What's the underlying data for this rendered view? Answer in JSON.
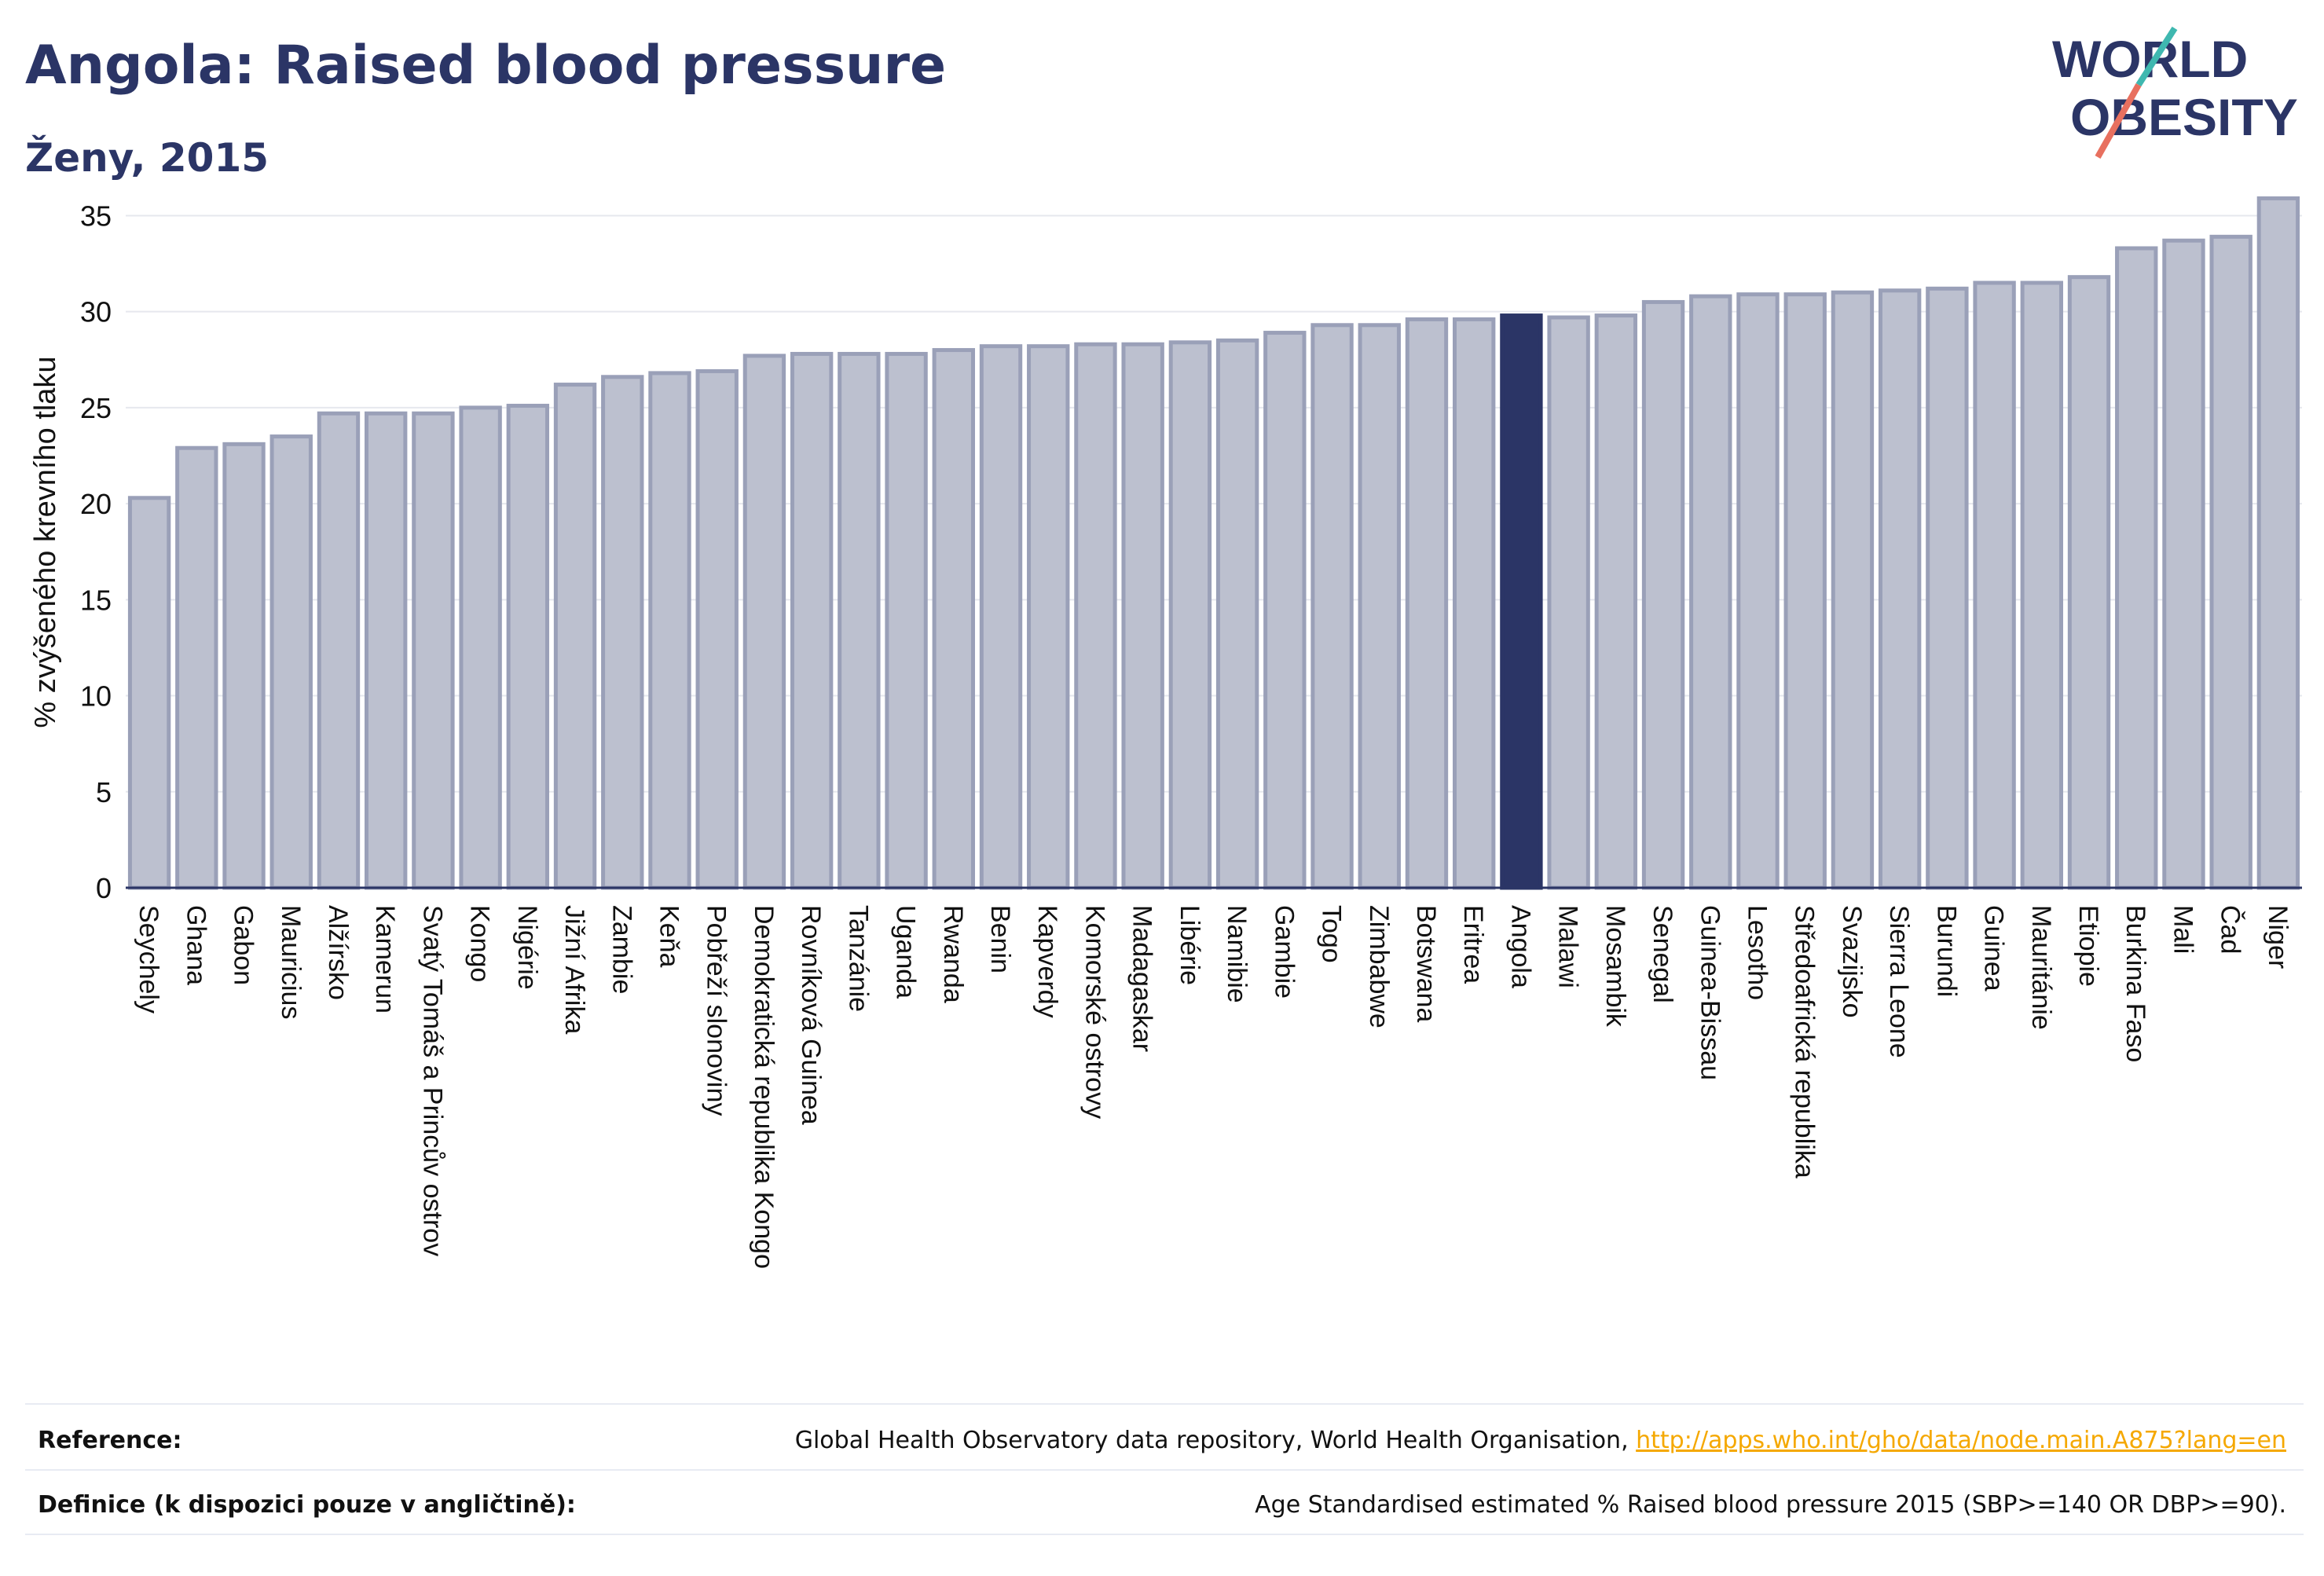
{
  "header": {
    "title": "Angola: Raised blood pressure",
    "subtitle": "Ženy, 2015"
  },
  "logo": {
    "line1": "WORLD",
    "line2": "OBESITY"
  },
  "colors": {
    "bar_fill": "#bcc0cf",
    "bar_stroke": "#9aa0b8",
    "highlight": "#2b3566",
    "text_dark": "#2b3566",
    "link": "#f5a800",
    "logo_teal": "#3fb8b0",
    "logo_coral": "#e8705f"
  },
  "chart_data": {
    "type": "bar",
    "ylabel": "% zvýšeného krevního tlaku",
    "xlabel": "",
    "ylim": [
      0,
      36
    ],
    "yticks": [
      0,
      5,
      10,
      15,
      20,
      25,
      30,
      35
    ],
    "grid": true,
    "highlight_category": "Angola",
    "categories": [
      "Seychely",
      "Ghana",
      "Gabon",
      "Mauricius",
      "Alžírsko",
      "Kamerun",
      "Svatý Tomáš a Princův ostrov",
      "Kongo",
      "Nigérie",
      "Jižní Afrika",
      "Zambie",
      "Keňa",
      "Pobřeží slonoviny",
      "Demokratická republika Kongo",
      "Rovníková Guinea",
      "Tanzánie",
      "Uganda",
      "Rwanda",
      "Benin",
      "Kapverdy",
      "Komorské ostrovy",
      "Madagaskar",
      "Libérie",
      "Namibie",
      "Gambie",
      "Togo",
      "Zimbabwe",
      "Botswana",
      "Eritrea",
      "Angola",
      "Malawi",
      "Mosambik",
      "Senegal",
      "Guinea-Bissau",
      "Lesotho",
      "Středoafrická republika",
      "Svazijsko",
      "Sierra Leone",
      "Burundi",
      "Guinea",
      "Mauritánie",
      "Etiopie",
      "Burkina Faso",
      "Mali",
      "Čad",
      "Niger"
    ],
    "values": [
      20.3,
      22.9,
      23.1,
      23.5,
      24.7,
      24.7,
      24.7,
      25.0,
      25.1,
      26.2,
      26.6,
      26.8,
      26.9,
      27.7,
      27.8,
      27.8,
      27.8,
      28.0,
      28.2,
      28.2,
      28.3,
      28.3,
      28.4,
      28.5,
      28.9,
      29.3,
      29.3,
      29.6,
      29.6,
      29.8,
      29.7,
      29.8,
      30.5,
      30.8,
      30.9,
      30.9,
      31.0,
      31.1,
      31.2,
      31.5,
      31.5,
      31.8,
      33.3,
      33.7,
      33.9,
      35.9
    ]
  },
  "footer": {
    "reference_label": "Reference:",
    "reference_text": "Global Health Observatory data repository, World Health Organisation, ",
    "reference_link": "http://apps.who.int/gho/data/node.main.A875?lang=en",
    "definition_label": "Definice (k dispozici pouze v angličtině):",
    "definition_text": "Age Standardised estimated % Raised blood pressure 2015 (SBP>=140 OR DBP>=90)."
  }
}
